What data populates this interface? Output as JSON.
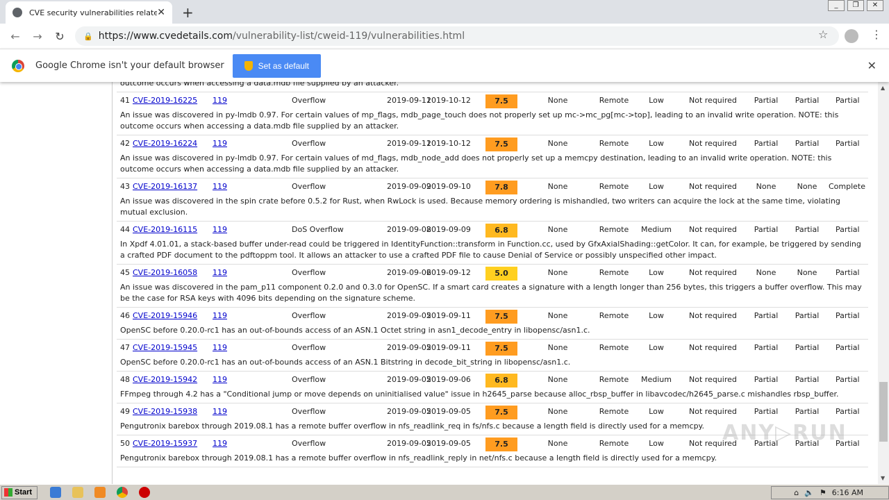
{
  "browser": {
    "tab_title": "CVE security vulnerabilities related to",
    "url_host": "https://www.cvedetails.com",
    "url_path": "/vulnerability-list/cweid-119/vulnerabilities.html"
  },
  "infobar": {
    "message": "Google Chrome isn't your default browser",
    "button": "Set as default"
  },
  "top_fragment": "outcome occurs when accessing a data.mdb file supplied by an attacker.",
  "score_colors": {
    "7.5": "#ff9c20",
    "7.8": "#ff9c20",
    "6.8": "#ffb920",
    "5.0": "#ffd020"
  },
  "rows": [
    {
      "n": "41",
      "cve": "CVE-2019-16225",
      "cwe": "119",
      "type": "Overflow",
      "pub": "2019-09-11",
      "upd": "2019-10-12",
      "score": "7.5",
      "gained": "None",
      "access": "Remote",
      "complexity": "Low",
      "auth": "Not required",
      "conf": "Partial",
      "integ": "Partial",
      "avail": "Partial",
      "desc": "An issue was discovered in py-lmdb 0.97. For certain values of mp_flags, mdb_page_touch does not properly set up mc->mc_pg[mc->top], leading to an invalid write operation. NOTE: this outcome occurs when accessing a data.mdb file supplied by an attacker."
    },
    {
      "n": "42",
      "cve": "CVE-2019-16224",
      "cwe": "119",
      "type": "Overflow",
      "pub": "2019-09-11",
      "upd": "2019-10-12",
      "score": "7.5",
      "gained": "None",
      "access": "Remote",
      "complexity": "Low",
      "auth": "Not required",
      "conf": "Partial",
      "integ": "Partial",
      "avail": "Partial",
      "desc": "An issue was discovered in py-lmdb 0.97. For certain values of md_flags, mdb_node_add does not properly set up a memcpy destination, leading to an invalid write operation. NOTE: this outcome occurs when accessing a data.mdb file supplied by an attacker."
    },
    {
      "n": "43",
      "cve": "CVE-2019-16137",
      "cwe": "119",
      "type": "Overflow",
      "pub": "2019-09-09",
      "upd": "2019-09-10",
      "score": "7.8",
      "gained": "None",
      "access": "Remote",
      "complexity": "Low",
      "auth": "Not required",
      "conf": "None",
      "integ": "None",
      "avail": "Complete",
      "desc": "An issue was discovered in the spin crate before 0.5.2 for Rust, when RwLock is used. Because memory ordering is mishandled, two writers can acquire the lock at the same time, violating mutual exclusion."
    },
    {
      "n": "44",
      "cve": "CVE-2019-16115",
      "cwe": "119",
      "type": "DoS Overflow",
      "pub": "2019-09-08",
      "upd": "2019-09-09",
      "score": "6.8",
      "gained": "None",
      "access": "Remote",
      "complexity": "Medium",
      "auth": "Not required",
      "conf": "Partial",
      "integ": "Partial",
      "avail": "Partial",
      "desc": "In Xpdf 4.01.01, a stack-based buffer under-read could be triggered in IdentityFunction::transform in Function.cc, used by GfxAxialShading::getColor. It can, for example, be triggered by sending a crafted PDF document to the pdftoppm tool. It allows an attacker to use a crafted PDF file to cause Denial of Service or possibly unspecified other impact."
    },
    {
      "n": "45",
      "cve": "CVE-2019-16058",
      "cwe": "119",
      "type": "Overflow",
      "pub": "2019-09-06",
      "upd": "2019-09-12",
      "score": "5.0",
      "gained": "None",
      "access": "Remote",
      "complexity": "Low",
      "auth": "Not required",
      "conf": "None",
      "integ": "None",
      "avail": "Partial",
      "desc": "An issue was discovered in the pam_p11 component 0.2.0 and 0.3.0 for OpenSC. If a smart card creates a signature with a length longer than 256 bytes, this triggers a buffer overflow. This may be the case for RSA keys with 4096 bits depending on the signature scheme."
    },
    {
      "n": "46",
      "cve": "CVE-2019-15946",
      "cwe": "119",
      "type": "Overflow",
      "pub": "2019-09-05",
      "upd": "2019-09-11",
      "score": "7.5",
      "gained": "None",
      "access": "Remote",
      "complexity": "Low",
      "auth": "Not required",
      "conf": "Partial",
      "integ": "Partial",
      "avail": "Partial",
      "desc": "OpenSC before 0.20.0-rc1 has an out-of-bounds access of an ASN.1 Octet string in asn1_decode_entry in libopensc/asn1.c."
    },
    {
      "n": "47",
      "cve": "CVE-2019-15945",
      "cwe": "119",
      "type": "Overflow",
      "pub": "2019-09-05",
      "upd": "2019-09-11",
      "score": "7.5",
      "gained": "None",
      "access": "Remote",
      "complexity": "Low",
      "auth": "Not required",
      "conf": "Partial",
      "integ": "Partial",
      "avail": "Partial",
      "desc": "OpenSC before 0.20.0-rc1 has an out-of-bounds access of an ASN.1 Bitstring in decode_bit_string in libopensc/asn1.c."
    },
    {
      "n": "48",
      "cve": "CVE-2019-15942",
      "cwe": "119",
      "type": "Overflow",
      "pub": "2019-09-05",
      "upd": "2019-09-06",
      "score": "6.8",
      "gained": "None",
      "access": "Remote",
      "complexity": "Medium",
      "auth": "Not required",
      "conf": "Partial",
      "integ": "Partial",
      "avail": "Partial",
      "desc": "FFmpeg through 4.2 has a \"Conditional jump or move depends on uninitialised value\" issue in h2645_parse because alloc_rbsp_buffer in libavcodec/h2645_parse.c mishandles rbsp_buffer."
    },
    {
      "n": "49",
      "cve": "CVE-2019-15938",
      "cwe": "119",
      "type": "Overflow",
      "pub": "2019-09-05",
      "upd": "2019-09-05",
      "score": "7.5",
      "gained": "None",
      "access": "Remote",
      "complexity": "Low",
      "auth": "Not required",
      "conf": "Partial",
      "integ": "Partial",
      "avail": "Partial",
      "desc": "Pengutronix barebox through 2019.08.1 has a remote buffer overflow in nfs_readlink_req in fs/nfs.c because a length field is directly used for a memcpy."
    },
    {
      "n": "50",
      "cve": "CVE-2019-15937",
      "cwe": "119",
      "type": "Overflow",
      "pub": "2019-09-05",
      "upd": "2019-09-05",
      "score": "7.5",
      "gained": "None",
      "access": "Remote",
      "complexity": "Low",
      "auth": "Not required",
      "conf": "Partial",
      "integ": "Partial",
      "avail": "Partial",
      "desc": "Pengutronix barebox through 2019.08.1 has a remote buffer overflow in nfs_readlink_reply in net/nfs.c because a length field is directly used for a memcpy."
    }
  ],
  "taskbar": {
    "start": "Start",
    "clock": "6:16 AM"
  },
  "watermark": "ANY RUN"
}
